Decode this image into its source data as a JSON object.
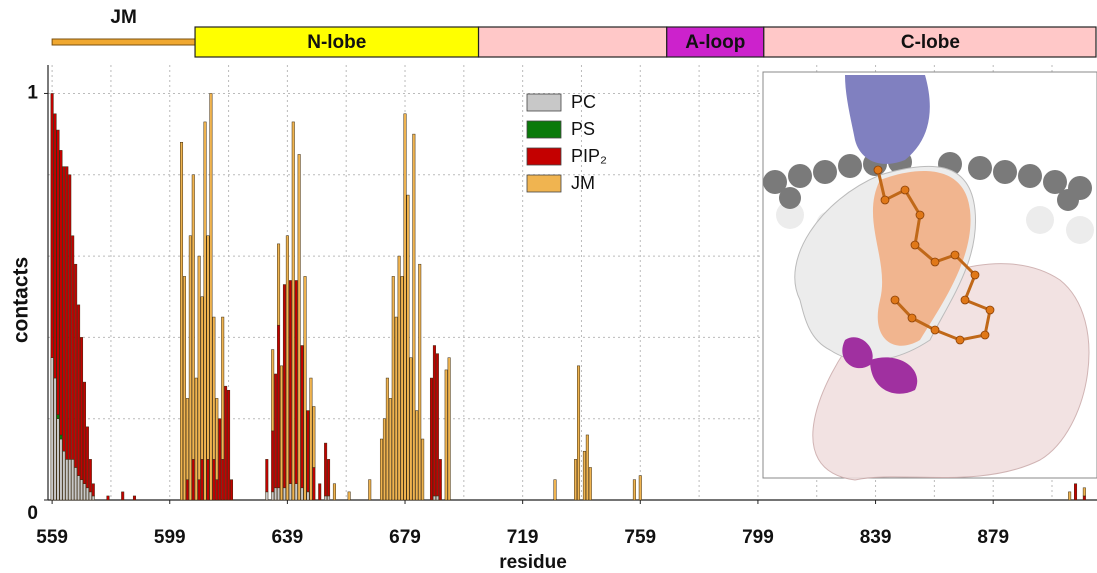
{
  "chart_data": {
    "type": "bar",
    "stacked": true,
    "xlabel": "residue",
    "ylabel": "contacts",
    "xlim": [
      557.6,
      914.3
    ],
    "ylim": [
      0,
      1.07
    ],
    "xticks": [
      559,
      599,
      639,
      679,
      719,
      759,
      799,
      839,
      879
    ],
    "xgrid": [
      559,
      579,
      599,
      619,
      639,
      659,
      679,
      699,
      719,
      739,
      759,
      779,
      799,
      819,
      839,
      859,
      879,
      899
    ],
    "yticks": [
      0,
      1
    ],
    "ygrid": [
      0.2,
      0.4,
      0.6,
      0.8,
      1
    ],
    "grid": true,
    "legend": "top-center",
    "domains": [
      {
        "label": "JM",
        "start": 559,
        "end": 607.6,
        "color": "#f0a830",
        "style": "line"
      },
      {
        "label": "N-lobe",
        "start": 607.6,
        "end": 704,
        "color": "#ffff00"
      },
      {
        "start": 704,
        "end": 768,
        "color": "#ffc8c8"
      },
      {
        "label": "A-loop",
        "start": 768,
        "end": 801,
        "color": "#cc22cc"
      },
      {
        "label": "C-lobe",
        "start": 801,
        "end": 914.3,
        "color": "#ffc8c8"
      }
    ],
    "x": [
      559,
      560,
      561,
      562,
      563,
      564,
      565,
      566,
      567,
      568,
      569,
      570,
      571,
      572,
      573,
      578,
      583,
      587,
      603,
      604,
      605,
      606,
      607,
      608,
      609,
      610,
      611,
      612,
      613,
      614,
      615,
      616,
      617,
      618,
      619,
      620,
      632,
      634,
      635,
      636,
      637,
      638,
      639,
      640,
      641,
      642,
      643,
      644,
      645,
      646,
      647,
      648,
      650,
      652,
      653,
      655,
      660,
      667,
      671,
      672,
      673,
      674,
      675,
      676,
      677,
      678,
      679,
      680,
      681,
      682,
      683,
      684,
      685,
      688,
      689,
      690,
      691,
      693,
      694,
      730,
      737,
      738,
      740,
      741,
      742,
      757,
      759,
      905,
      907,
      910
    ],
    "series": [
      {
        "name": "PC",
        "color": "#c8c8c8",
        "values": [
          0.35,
          0.3,
          0.2,
          0.15,
          0.12,
          0.1,
          0.1,
          0.1,
          0.08,
          0.06,
          0.05,
          0.04,
          0.03,
          0.02,
          0.01,
          0,
          0,
          0,
          0,
          0,
          0,
          0,
          0,
          0,
          0,
          0,
          0,
          0,
          0,
          0,
          0,
          0,
          0,
          0,
          0,
          0,
          0.02,
          0.02,
          0.03,
          0.03,
          0,
          0.03,
          0,
          0.04,
          0,
          0.04,
          0,
          0.03,
          0,
          0.02,
          0,
          0,
          0,
          0.01,
          0.01,
          0,
          0,
          0,
          0,
          0,
          0,
          0,
          0,
          0,
          0,
          0,
          0,
          0,
          0,
          0,
          0,
          0,
          0,
          0,
          0.01,
          0.01,
          0,
          0,
          0,
          0,
          0,
          0,
          0,
          0,
          0,
          0,
          0,
          0,
          0,
          0
        ]
      },
      {
        "name": "PS",
        "color": "#0a7a0a",
        "values": [
          0,
          0,
          0.01,
          0.01,
          0,
          0,
          0,
          0,
          0,
          0,
          0,
          0,
          0,
          0,
          0,
          0,
          0,
          0,
          0,
          0,
          0,
          0,
          0,
          0,
          0,
          0,
          0,
          0,
          0,
          0,
          0,
          0,
          0,
          0,
          0,
          0,
          0,
          0,
          0,
          0,
          0,
          0,
          0,
          0,
          0,
          0,
          0,
          0,
          0,
          0,
          0,
          0,
          0,
          0,
          0,
          0,
          0,
          0,
          0,
          0,
          0,
          0,
          0,
          0,
          0,
          0,
          0,
          0,
          0,
          0,
          0,
          0,
          0,
          0,
          0,
          0,
          0,
          0,
          0,
          0,
          0,
          0,
          0,
          0,
          0,
          0,
          0,
          0,
          0,
          0
        ]
      },
      {
        "name": "PIP₂",
        "color": "#c40000",
        "values": [
          0.65,
          0.65,
          0.7,
          0.7,
          0.7,
          0.72,
          0.7,
          0.55,
          0.5,
          0.42,
          0.35,
          0.25,
          0.15,
          0.08,
          0.03,
          0.01,
          0.02,
          0.01,
          0,
          0,
          0.05,
          0,
          0.1,
          0,
          0.05,
          0.1,
          0,
          0.1,
          0,
          0.1,
          0.05,
          0.2,
          0.1,
          0.28,
          0.27,
          0.05,
          0.08,
          0.15,
          0.28,
          0.4,
          0,
          0.5,
          0,
          0.5,
          0,
          0.5,
          0,
          0.35,
          0,
          0.2,
          0,
          0.08,
          0.04,
          0.13,
          0.09,
          0,
          0,
          0,
          0,
          0,
          0,
          0,
          0,
          0,
          0,
          0,
          0,
          0,
          0,
          0,
          0,
          0,
          0,
          0.3,
          0.37,
          0.35,
          0.1,
          0,
          0,
          0,
          0,
          0,
          0,
          0,
          0,
          0,
          0,
          0,
          0.04,
          0.01
        ]
      },
      {
        "name": "JM",
        "color": "#f0b450",
        "values": [
          0,
          0,
          0,
          0,
          0,
          0,
          0,
          0,
          0,
          0,
          0,
          0,
          0,
          0,
          0,
          0,
          0,
          0,
          0.88,
          0.55,
          0.2,
          0.65,
          0.7,
          0.3,
          0.55,
          0.4,
          0.93,
          0.55,
          1,
          0.35,
          0.2,
          0,
          0.35,
          0,
          0,
          0,
          0,
          0.2,
          0,
          0.2,
          0.33,
          0,
          0.65,
          0,
          0.93,
          0,
          0.85,
          0,
          0.55,
          0,
          0.3,
          0.15,
          0,
          0,
          0,
          0.04,
          0.02,
          0.05,
          0.15,
          0.2,
          0.3,
          0.25,
          0.55,
          0.45,
          0.6,
          0.55,
          0.95,
          0.75,
          0.35,
          0.9,
          0.22,
          0.58,
          0.15,
          0,
          0,
          0,
          0,
          0.32,
          0.35,
          0.05,
          0.1,
          0.33,
          0.12,
          0.16,
          0.08,
          0.05,
          0.06,
          0.02,
          0,
          0.02
        ]
      }
    ]
  }
}
